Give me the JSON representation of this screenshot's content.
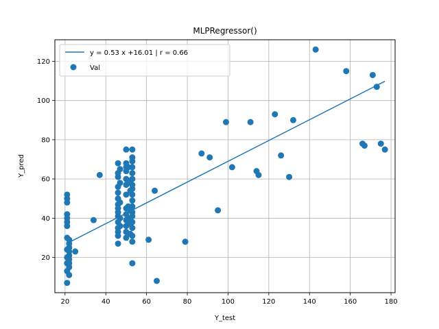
{
  "chart_data": {
    "type": "scatter",
    "title": "MLPRegressor()",
    "xlabel": "Y_test",
    "ylabel": "Y_pred",
    "xlim": [
      15,
      182
    ],
    "ylim": [
      2,
      131
    ],
    "x_ticks": [
      20,
      40,
      60,
      80,
      100,
      120,
      140,
      160,
      180
    ],
    "y_ticks": [
      20,
      40,
      60,
      80,
      100,
      120
    ],
    "grid": true,
    "legend_position": "upper-left",
    "colors": {
      "series": "#1f77b4"
    },
    "series": [
      {
        "name": "y = 0.53 x +16.01 | r = 0.66",
        "type": "line",
        "x": [
          22,
          177
        ],
        "y": [
          27.67,
          109.82
        ]
      },
      {
        "name": "Val",
        "type": "scatter",
        "points": [
          [
            21,
            52
          ],
          [
            21,
            50
          ],
          [
            21,
            48
          ],
          [
            21,
            42
          ],
          [
            21,
            40
          ],
          [
            21,
            38
          ],
          [
            21,
            36
          ],
          [
            21,
            30
          ],
          [
            21,
            24
          ],
          [
            21,
            20
          ],
          [
            21,
            17
          ],
          [
            21,
            13
          ],
          [
            21,
            7
          ],
          [
            22,
            29
          ],
          [
            22,
            27
          ],
          [
            22,
            25
          ],
          [
            22,
            23
          ],
          [
            22,
            21
          ],
          [
            22,
            19
          ],
          [
            22,
            17
          ],
          [
            22,
            15
          ],
          [
            22,
            11
          ],
          [
            25,
            23
          ],
          [
            34,
            39
          ],
          [
            37,
            62
          ],
          [
            46,
            68
          ],
          [
            46,
            63
          ],
          [
            46,
            61
          ],
          [
            46,
            56
          ],
          [
            46,
            53
          ],
          [
            46,
            50
          ],
          [
            46,
            47
          ],
          [
            46,
            45
          ],
          [
            46,
            43
          ],
          [
            46,
            41
          ],
          [
            46,
            38
          ],
          [
            46,
            35
          ],
          [
            46,
            33
          ],
          [
            46,
            31
          ],
          [
            46,
            27
          ],
          [
            47,
            65
          ],
          [
            47,
            58
          ],
          [
            47,
            48
          ],
          [
            47,
            40
          ],
          [
            47,
            36
          ],
          [
            50,
            75
          ],
          [
            50,
            68
          ],
          [
            50,
            66
          ],
          [
            50,
            64
          ],
          [
            50,
            60
          ],
          [
            50,
            57
          ],
          [
            50,
            52
          ],
          [
            50,
            45
          ],
          [
            50,
            42
          ],
          [
            50,
            39
          ],
          [
            50,
            36
          ],
          [
            50,
            33
          ],
          [
            50,
            30
          ],
          [
            51,
            66
          ],
          [
            51,
            59
          ],
          [
            51,
            46
          ],
          [
            51,
            40
          ],
          [
            52,
            58
          ],
          [
            52,
            54
          ],
          [
            52,
            44
          ],
          [
            52,
            37
          ],
          [
            52,
            32
          ],
          [
            53,
            75
          ],
          [
            53,
            71
          ],
          [
            53,
            69
          ],
          [
            53,
            66
          ],
          [
            53,
            63
          ],
          [
            53,
            60
          ],
          [
            53,
            57
          ],
          [
            53,
            55
          ],
          [
            53,
            52
          ],
          [
            53,
            49
          ],
          [
            53,
            46
          ],
          [
            53,
            43
          ],
          [
            53,
            41
          ],
          [
            53,
            38
          ],
          [
            53,
            35
          ],
          [
            53,
            31
          ],
          [
            53,
            28
          ],
          [
            53,
            17
          ],
          [
            61,
            29
          ],
          [
            64,
            54
          ],
          [
            65,
            8
          ],
          [
            79,
            28
          ],
          [
            87,
            73
          ],
          [
            91,
            71
          ],
          [
            95,
            44
          ],
          [
            99,
            89
          ],
          [
            102,
            66
          ],
          [
            111,
            89
          ],
          [
            114,
            64
          ],
          [
            115,
            62
          ],
          [
            123,
            93
          ],
          [
            126,
            72
          ],
          [
            130,
            61
          ],
          [
            132,
            90
          ],
          [
            143,
            126
          ],
          [
            158,
            115
          ],
          [
            166,
            78
          ],
          [
            167,
            77
          ],
          [
            171,
            113
          ],
          [
            173,
            107
          ],
          [
            175,
            78
          ],
          [
            177,
            75
          ]
        ]
      }
    ]
  }
}
